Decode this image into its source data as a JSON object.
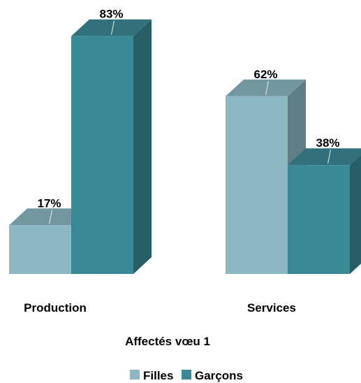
{
  "chart_data": {
    "type": "bar",
    "style": "3d-clustered-column",
    "title": "",
    "xlabel": "Affectés vœu 1",
    "ylabel": "",
    "categories": [
      "Production",
      "Services"
    ],
    "series": [
      {
        "name": "Filles",
        "values": [
          17,
          62
        ],
        "labels": [
          "17%",
          "62%"
        ],
        "color": "#8cb8c4"
      },
      {
        "name": "Garçons",
        "values": [
          83,
          38
        ],
        "labels": [
          "83%",
          "38%"
        ],
        "color": "#3a8a96"
      }
    ],
    "ylim": [
      0,
      100
    ],
    "value_unit": "%",
    "grid": false,
    "legend": "bottom-center"
  }
}
